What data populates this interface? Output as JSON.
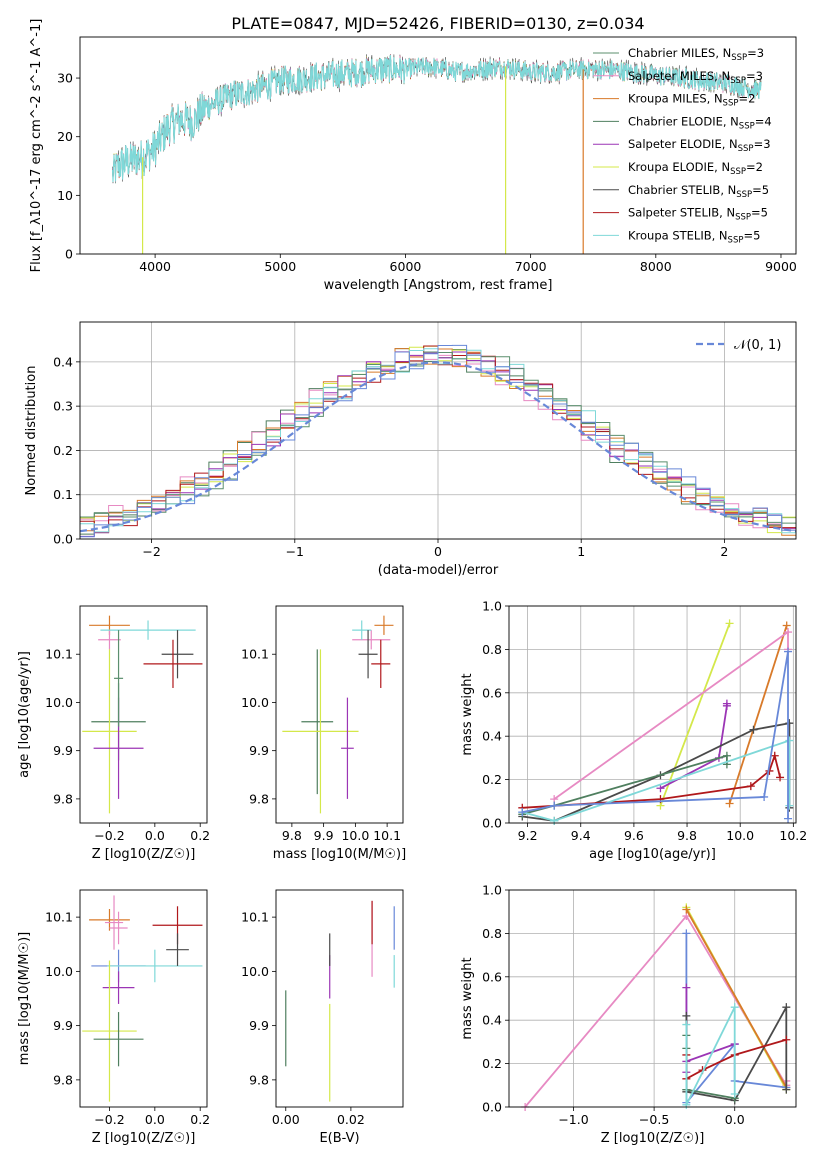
{
  "figure": {
    "title": "PLATE=0847, MJD=52426, FIBERID=0130, z=0.034"
  },
  "series": [
    {
      "key": "chab_miles",
      "name": "Chabrier MILES, N$_{SSP}$=3",
      "label_main": "Chabrier MILES, N",
      "label_sub": "SSP",
      "label_tail": "=3",
      "color": "#5b8f6e"
    },
    {
      "key": "salp_miles",
      "name": "Salpeter MILES, N$_{SSP}$=3",
      "label_main": "Salpeter MILES, N",
      "label_sub": "SSP",
      "label_tail": "=3",
      "color": "#e78ac3"
    },
    {
      "key": "krou_miles",
      "name": "Kroupa MILES, N$_{SSP}$=2",
      "label_main": "Kroupa MILES, N",
      "label_sub": "SSP",
      "label_tail": "=2",
      "color": "#d87a2a"
    },
    {
      "key": "chab_elodie",
      "name": "Chabrier ELODIE, N$_{SSP}$=4",
      "label_main": "Chabrier ELODIE, N",
      "label_sub": "SSP",
      "label_tail": "=4",
      "color": "#4f7f5f"
    },
    {
      "key": "salp_elodie",
      "name": "Salpeter ELODIE, N$_{SSP}$=3",
      "label_main": "Salpeter ELODIE, N",
      "label_sub": "SSP",
      "label_tail": "=3",
      "color": "#9b35b5"
    },
    {
      "key": "krou_elodie",
      "name": "Kroupa ELODIE, N$_{SSP}$=2",
      "label_main": "Kroupa ELODIE, N",
      "label_sub": "SSP",
      "label_tail": "=2",
      "color": "#d4e84a"
    },
    {
      "key": "chab_stelib",
      "name": "Chabrier STELIB, N$_{SSP}$=5",
      "label_main": "Chabrier STELIB, N",
      "label_sub": "SSP",
      "label_tail": "=5",
      "color": "#4a4a4a"
    },
    {
      "key": "salp_stelib",
      "name": "Salpeter STELIB, N$_{SSP}$=5",
      "label_main": "Salpeter STELIB, N",
      "label_sub": "SSP",
      "label_tail": "=5",
      "color": "#b0181b"
    },
    {
      "key": "krou_stelib",
      "name": "Kroupa STELIB, N$_{SSP}$=5",
      "label_main": "Kroupa STELIB, N",
      "label_sub": "SSP",
      "label_tail": "=5",
      "color": "#7fd8d8"
    },
    {
      "key": "blue_extra",
      "name": "",
      "label_main": "",
      "label_sub": "",
      "label_tail": "",
      "color": "#6888d8"
    }
  ],
  "chart_data": [
    {
      "id": "spectrum",
      "type": "line",
      "title": "PLATE=0847, MJD=52426, FIBERID=0130, z=0.034",
      "xlabel": "wavelength [Angstrom, rest frame]",
      "ylabel": "Flux [f_λ10^-17 erg cm^-2 s^-1 A^-1]",
      "xlim": [
        3400,
        9120
      ],
      "ylim": [
        0,
        37
      ],
      "xticks": [
        4000,
        5000,
        6000,
        7000,
        8000,
        9000
      ],
      "yticks": [
        0,
        10,
        20,
        30
      ],
      "legend": "upper right",
      "grid": false,
      "continuum": {
        "x": [
          3650,
          3700,
          3800,
          3900,
          4000,
          4100,
          4200,
          4300,
          4400,
          4500,
          4600,
          4800,
          5000,
          5200,
          5400,
          5600,
          5800,
          6000,
          6200,
          6400,
          6600,
          6800,
          7000,
          7200,
          7400,
          7600,
          7800,
          8000,
          8200,
          8400,
          8600,
          8800
        ],
        "y": [
          13,
          15,
          16,
          16.5,
          18,
          21.5,
          23,
          22.5,
          25,
          26,
          27,
          28,
          29.5,
          30,
          30.5,
          31,
          31.5,
          31.5,
          32,
          31,
          31.5,
          32,
          31,
          31,
          31.5,
          31.5,
          31,
          30.5,
          30,
          29.5,
          29,
          28
        ]
      },
      "dropouts": [
        {
          "series": "krou_elodie",
          "x": 6800
        },
        {
          "series": "krou_miles",
          "x": 7420
        },
        {
          "series": "krou_elodie",
          "x": 3900
        }
      ]
    },
    {
      "id": "residuals",
      "type": "histogram",
      "xlabel": "(data-model)/error",
      "ylabel": "Normed distribution",
      "xlim": [
        -2.5,
        2.5
      ],
      "ylim": [
        0,
        0.49
      ],
      "xticks": [
        -2,
        -1,
        0,
        1,
        2
      ],
      "yticks": [
        0.0,
        0.1,
        0.2,
        0.3,
        0.4
      ],
      "grid": true,
      "bin_width": 0.1,
      "reference_curve": {
        "label": "𝒩(0, 1)",
        "mean": 0,
        "sigma": 1,
        "style": "dashed",
        "color": "#6888d8"
      }
    },
    {
      "id": "age_vs_Z",
      "type": "errorbar",
      "xlabel": "Z [log10(Z/Z☉)]",
      "ylabel": "age  [log10(age/yr)]",
      "xlim": [
        -0.33,
        0.23
      ],
      "ylim": [
        9.75,
        10.2
      ],
      "xticks": [
        -0.2,
        0.0,
        0.2
      ],
      "yticks": [
        9.8,
        9.9,
        10.0,
        10.1
      ],
      "points": [
        {
          "series": "krou_miles",
          "x": -0.2,
          "xerr": 0.09,
          "y": 10.16,
          "yerr": 0.02
        },
        {
          "series": "salp_miles",
          "x": -0.2,
          "xerr": 0.05,
          "y": 10.13,
          "yerr": 0.02
        },
        {
          "series": "krou_stelib",
          "x": -0.03,
          "xerr": 0.21,
          "y": 10.15,
          "yerr": 0.02
        },
        {
          "series": "chab_stelib",
          "x": 0.1,
          "xerr": 0.07,
          "y": 10.1,
          "yerr": 0.05
        },
        {
          "series": "salp_stelib",
          "x": 0.08,
          "xerr": 0.13,
          "y": 10.08,
          "yerr": 0.05
        },
        {
          "series": "chab_elodie",
          "x": -0.16,
          "xerr": 0.12,
          "y": 9.96,
          "yerr": 0.08
        },
        {
          "series": "krou_elodie",
          "x": -0.2,
          "xerr": 0.12,
          "y": 9.94,
          "yerr": 0.17
        },
        {
          "series": "salp_elodie",
          "x": -0.16,
          "xerr": 0.11,
          "y": 9.905,
          "yerr": 0.105
        },
        {
          "series": "chab_miles",
          "x": -0.16,
          "xerr": 0.02,
          "y": 10.05,
          "yerr": 0.1
        }
      ]
    },
    {
      "id": "age_vs_mass",
      "type": "errorbar",
      "xlabel": "mass [log10(M/M☉)]",
      "ylabel": "",
      "xlim": [
        9.75,
        10.15
      ],
      "ylim": [
        9.75,
        10.2
      ],
      "xticks": [
        9.8,
        9.9,
        10.0,
        10.1
      ],
      "yticks": [
        9.8,
        9.9,
        10.0,
        10.1
      ],
      "points": [
        {
          "series": "krou_miles",
          "x": 10.09,
          "xerr": 0.03,
          "y": 10.16,
          "yerr": 0.02
        },
        {
          "series": "salp_miles",
          "x": 10.05,
          "xerr": 0.06,
          "y": 10.13,
          "yerr": 0.02
        },
        {
          "series": "krou_stelib",
          "x": 10.02,
          "xerr": 0.03,
          "y": 10.15,
          "yerr": 0.02
        },
        {
          "series": "chab_stelib",
          "x": 10.04,
          "xerr": 0.03,
          "y": 10.1,
          "yerr": 0.05
        },
        {
          "series": "salp_stelib",
          "x": 10.08,
          "xerr": 0.03,
          "y": 10.08,
          "yerr": 0.05
        },
        {
          "series": "chab_elodie",
          "x": 9.88,
          "xerr": 0.05,
          "y": 9.96,
          "yerr": 0.15
        },
        {
          "series": "krou_elodie",
          "x": 9.89,
          "xerr": 0.12,
          "y": 9.94,
          "yerr": 0.17
        },
        {
          "series": "salp_elodie",
          "x": 9.975,
          "xerr": 0.02,
          "y": 9.905,
          "yerr": 0.105
        }
      ]
    },
    {
      "id": "mass_weight_vs_age",
      "type": "line",
      "xlabel": "age  [log10(age/yr)]",
      "ylabel": "mass weight",
      "xlim": [
        9.13,
        10.21
      ],
      "ylim": [
        0,
        1.0
      ],
      "xticks": [
        9.2,
        9.4,
        9.6,
        9.8,
        10.0,
        10.2
      ],
      "yticks": [
        0.0,
        0.2,
        0.4,
        0.6,
        0.8,
        1.0
      ],
      "grid": true,
      "lines": [
        {
          "series": "krou_elodie",
          "x": [
            9.7,
            9.96
          ],
          "y": [
            0.08,
            0.92
          ]
        },
        {
          "series": "krou_miles",
          "x": [
            9.96,
            10.175
          ],
          "y": [
            0.09,
            0.91
          ]
        },
        {
          "series": "salp_miles",
          "x": [
            9.3,
            10.18,
            10.18
          ],
          "y": [
            0.11,
            0.88,
            0.8
          ]
        },
        {
          "series": "salp_elodie",
          "x": [
            9.7,
            9.92,
            9.95,
            9.95
          ],
          "y": [
            0.16,
            0.3,
            0.54,
            0.55
          ]
        },
        {
          "series": "chab_stelib",
          "x": [
            9.18,
            9.3,
            9.7,
            10.05,
            10.185,
            10.185
          ],
          "y": [
            0.03,
            0.01,
            0.22,
            0.43,
            0.46,
            0.07
          ]
        },
        {
          "series": "salp_stelib",
          "x": [
            9.18,
            9.7,
            10.04,
            10.11,
            10.13,
            10.15
          ],
          "y": [
            0.07,
            0.11,
            0.17,
            0.24,
            0.31,
            0.21
          ]
        },
        {
          "series": "chab_elodie",
          "x": [
            9.18,
            9.3,
            9.95,
            9.95
          ],
          "y": [
            0.04,
            0.08,
            0.31,
            0.27
          ]
        },
        {
          "series": "krou_stelib",
          "x": [
            9.18,
            9.3,
            10.185,
            10.185
          ],
          "y": [
            0.05,
            0.01,
            0.38,
            0.08
          ]
        },
        {
          "series": "blue_extra",
          "x": [
            9.18,
            9.3,
            10.09,
            10.18,
            10.18
          ],
          "y": [
            0.05,
            0.08,
            0.12,
            0.79,
            0.02
          ]
        }
      ]
    },
    {
      "id": "mass_vs_Z",
      "type": "errorbar",
      "xlabel": "Z [log10(Z/Z☉)]",
      "ylabel": "mass [log10(M/M☉)]",
      "xlim": [
        -0.33,
        0.23
      ],
      "ylim": [
        9.75,
        10.15
      ],
      "xticks": [
        -0.2,
        0.0,
        0.2
      ],
      "yticks": [
        9.8,
        9.9,
        10.0,
        10.1
      ],
      "points": [
        {
          "series": "krou_miles",
          "x": -0.2,
          "xerr": 0.09,
          "y": 10.095,
          "yerr": 0.02
        },
        {
          "series": "salp_miles",
          "x": -0.18,
          "xerr": 0.04,
          "y": 10.09,
          "yerr": 0.05
        },
        {
          "series": "salp_stelib",
          "x": 0.1,
          "xerr": 0.11,
          "y": 10.085,
          "yerr": 0.035
        },
        {
          "series": "salp_miles",
          "x": -0.16,
          "xerr": 0.04,
          "y": 10.08,
          "yerr": 0.03
        },
        {
          "series": "blue_extra",
          "x": -0.16,
          "xerr": 0.12,
          "y": 10.01,
          "yerr": 0.03
        },
        {
          "series": "krou_stelib",
          "x": 0.0,
          "xerr": 0.21,
          "y": 10.01,
          "yerr": 0.03
        },
        {
          "series": "chab_stelib",
          "x": 0.1,
          "xerr": 0.05,
          "y": 10.04,
          "yerr": 0.03
        },
        {
          "series": "salp_elodie",
          "x": -0.16,
          "xerr": 0.07,
          "y": 9.97,
          "yerr": 0.03
        },
        {
          "series": "krou_elodie",
          "x": -0.2,
          "xerr": 0.12,
          "y": 9.89,
          "yerr": 0.13
        },
        {
          "series": "chab_elodie",
          "x": -0.16,
          "xerr": 0.11,
          "y": 9.875,
          "yerr": 0.05
        }
      ]
    },
    {
      "id": "mass_vs_ebv",
      "type": "errorbar",
      "xlabel": "E(B-V)",
      "ylabel": "",
      "xlim": [
        -0.003,
        0.036
      ],
      "ylim": [
        9.75,
        10.15
      ],
      "xticks": [
        0.0,
        0.02
      ],
      "yticks": [
        9.8,
        9.9,
        10.0,
        10.1
      ],
      "points": [
        {
          "series": "chab_elodie",
          "x": 0.0,
          "xerr": 0.0,
          "y": 9.895,
          "yerr": 0.07
        },
        {
          "series": "krou_elodie",
          "x": 0.0135,
          "xerr": 0.0,
          "y": 9.85,
          "yerr": 0.09
        },
        {
          "series": "salp_elodie",
          "x": 0.0135,
          "xerr": 0.0,
          "y": 9.99,
          "yerr": 0.04
        },
        {
          "series": "chab_stelib",
          "x": 0.0135,
          "xerr": 0.0,
          "y": 10.04,
          "yerr": 0.03
        },
        {
          "series": "salp_miles",
          "x": 0.0265,
          "xerr": 0.0,
          "y": 10.06,
          "yerr": 0.07
        },
        {
          "series": "salp_stelib",
          "x": 0.0265,
          "xerr": 0.0,
          "y": 10.09,
          "yerr": 0.04
        },
        {
          "series": "krou_stelib",
          "x": 0.0333,
          "xerr": 0.0,
          "y": 10.0,
          "yerr": 0.03
        },
        {
          "series": "blue_extra",
          "x": 0.0333,
          "xerr": 0.0,
          "y": 10.08,
          "yerr": 0.04
        }
      ]
    },
    {
      "id": "mass_weight_vs_Z",
      "type": "line",
      "xlabel": "Z [log10(Z/Z☉)]",
      "ylabel": "mass weight",
      "xlim": [
        -1.4,
        0.38
      ],
      "ylim": [
        0,
        1.0
      ],
      "xticks": [
        -1.0,
        -0.5,
        0.0
      ],
      "yticks": [
        0.0,
        0.2,
        0.4,
        0.6,
        0.8,
        1.0
      ],
      "grid": true,
      "lines": [
        {
          "series": "salp_miles",
          "x": [
            -1.3,
            -0.3,
            0.32,
            0.32
          ],
          "y": [
            0.0,
            0.88,
            0.1,
            0.12
          ]
        },
        {
          "series": "krou_elodie",
          "x": [
            -0.3,
            0.32
          ],
          "y": [
            0.92,
            0.08
          ]
        },
        {
          "series": "krou_miles",
          "x": [
            -0.3,
            0.32
          ],
          "y": [
            0.91,
            0.09
          ]
        },
        {
          "series": "blue_extra",
          "x": [
            -0.3,
            -0.3,
            0.0,
            0.0,
            0.32
          ],
          "y": [
            0.8,
            0.02,
            0.29,
            0.12,
            0.09
          ]
        },
        {
          "series": "salp_elodie",
          "x": [
            -0.3,
            -0.3,
            -0.3,
            0.0
          ],
          "y": [
            0.55,
            0.16,
            0.21,
            0.29
          ]
        },
        {
          "series": "chab_stelib",
          "x": [
            -0.3,
            -0.3,
            0.0,
            0.32,
            0.32
          ],
          "y": [
            0.42,
            0.07,
            0.03,
            0.46,
            0.08
          ]
        },
        {
          "series": "salp_stelib",
          "x": [
            -0.3,
            -0.3,
            -0.2,
            0.0,
            0.32
          ],
          "y": [
            0.24,
            0.13,
            0.17,
            0.24,
            0.31
          ]
        },
        {
          "series": "chab_elodie",
          "x": [
            -0.3,
            -0.3,
            -0.3,
            -0.3,
            0.0
          ],
          "y": [
            0.33,
            0.27,
            0.08,
            0.08,
            0.04
          ]
        },
        {
          "series": "krou_stelib",
          "x": [
            -0.3,
            -0.3,
            0.0,
            0.0
          ],
          "y": [
            0.38,
            0.01,
            0.46,
            0.06
          ]
        }
      ]
    }
  ]
}
